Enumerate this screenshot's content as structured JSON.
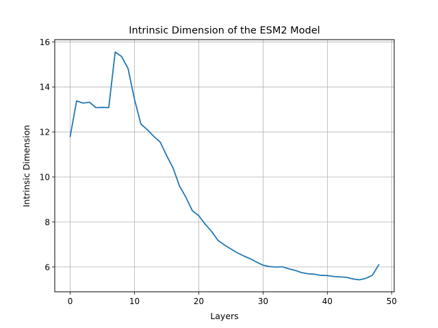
{
  "chart_data": {
    "type": "line",
    "title": "Intrinsic Dimension of the ESM2 Model",
    "xlabel": "Layers",
    "ylabel": "Intrinsic Dimension",
    "xlim": [
      -2.4,
      50.4
    ],
    "ylim": [
      4.9,
      16.1
    ],
    "xticks": [
      0,
      10,
      20,
      30,
      40,
      50
    ],
    "yticks": [
      6,
      8,
      10,
      12,
      14,
      16
    ],
    "grid": true,
    "colors": {
      "series": "#1f77b4"
    },
    "series": [
      {
        "x": [
          0,
          1,
          2,
          3,
          4,
          5,
          6,
          7,
          8,
          9,
          10,
          11,
          12,
          13,
          14,
          15,
          16,
          17,
          18,
          19,
          20,
          21,
          22,
          23,
          24,
          25,
          26,
          27,
          28,
          29,
          30,
          31,
          32,
          33,
          34,
          35,
          36,
          37,
          38,
          39,
          40,
          41,
          42,
          43,
          44,
          45,
          46,
          47,
          48
        ],
        "values": [
          11.8,
          13.38,
          13.28,
          13.32,
          13.08,
          13.09,
          13.08,
          15.55,
          15.35,
          14.82,
          13.45,
          12.35,
          12.1,
          11.8,
          11.55,
          10.95,
          10.4,
          9.6,
          9.1,
          8.5,
          8.28,
          7.9,
          7.58,
          7.18,
          6.98,
          6.8,
          6.63,
          6.49,
          6.37,
          6.22,
          6.08,
          6.02,
          6.0,
          6.01,
          5.92,
          5.85,
          5.75,
          5.7,
          5.68,
          5.63,
          5.62,
          5.58,
          5.56,
          5.54,
          5.47,
          5.43,
          5.5,
          5.63,
          6.1
        ]
      }
    ]
  }
}
